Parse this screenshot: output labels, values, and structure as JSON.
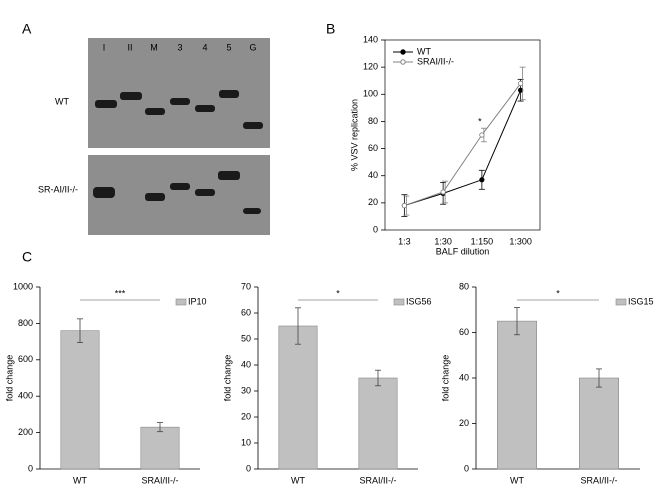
{
  "panel_labels": [
    "A",
    "B",
    "C"
  ],
  "gel": {
    "lane_labels": [
      "I",
      "II",
      "M",
      "3",
      "4",
      "5",
      "G"
    ],
    "row_labels": [
      "WT",
      "SR-AI/II-/-"
    ]
  },
  "chart_data": [
    {
      "type": "line",
      "x_label": "BALF dilution",
      "y_label": "% VSV replication",
      "categories": [
        "1:3",
        "1:30",
        "1:150",
        "1:300"
      ],
      "ylim": [
        0,
        140
      ],
      "yticks": [
        0,
        20,
        40,
        60,
        80,
        100,
        120,
        140
      ],
      "annotation": "*",
      "series": [
        {
          "name": "WT",
          "color": "#000000",
          "values": [
            18,
            27,
            37,
            103
          ],
          "errors": [
            8,
            8,
            7,
            8
          ]
        },
        {
          "name": "SRAI/II-/-",
          "color": "#808080",
          "values": [
            18,
            28,
            70,
            108
          ],
          "errors": [
            7,
            8,
            5,
            12
          ]
        }
      ]
    },
    {
      "type": "bar",
      "y_label": "fold change",
      "categories": [
        "WT",
        "SRAI/II-/-"
      ],
      "ylim": [
        0,
        1000
      ],
      "yticks": [
        0,
        200,
        400,
        600,
        800,
        1000
      ],
      "significance": "***",
      "series": [
        {
          "name": "IP10",
          "color": "#c0c0c0",
          "values": [
            760,
            230
          ],
          "errors": [
            65,
            25
          ]
        }
      ]
    },
    {
      "type": "bar",
      "y_label": "fold change",
      "categories": [
        "WT",
        "SRAI/II-/-"
      ],
      "ylim": [
        0,
        70
      ],
      "yticks": [
        0,
        10,
        20,
        30,
        40,
        50,
        60,
        70
      ],
      "significance": "*",
      "series": [
        {
          "name": "ISG56",
          "color": "#c0c0c0",
          "values": [
            55,
            35
          ],
          "errors": [
            7,
            3
          ]
        }
      ]
    },
    {
      "type": "bar",
      "y_label": "fold change",
      "categories": [
        "WT",
        "SRAI/II-/-"
      ],
      "ylim": [
        0,
        80
      ],
      "yticks": [
        0,
        20,
        40,
        60,
        80
      ],
      "significance": "*",
      "series": [
        {
          "name": "ISG15",
          "color": "#c0c0c0",
          "values": [
            65,
            40
          ],
          "errors": [
            6,
            4
          ]
        }
      ]
    }
  ]
}
